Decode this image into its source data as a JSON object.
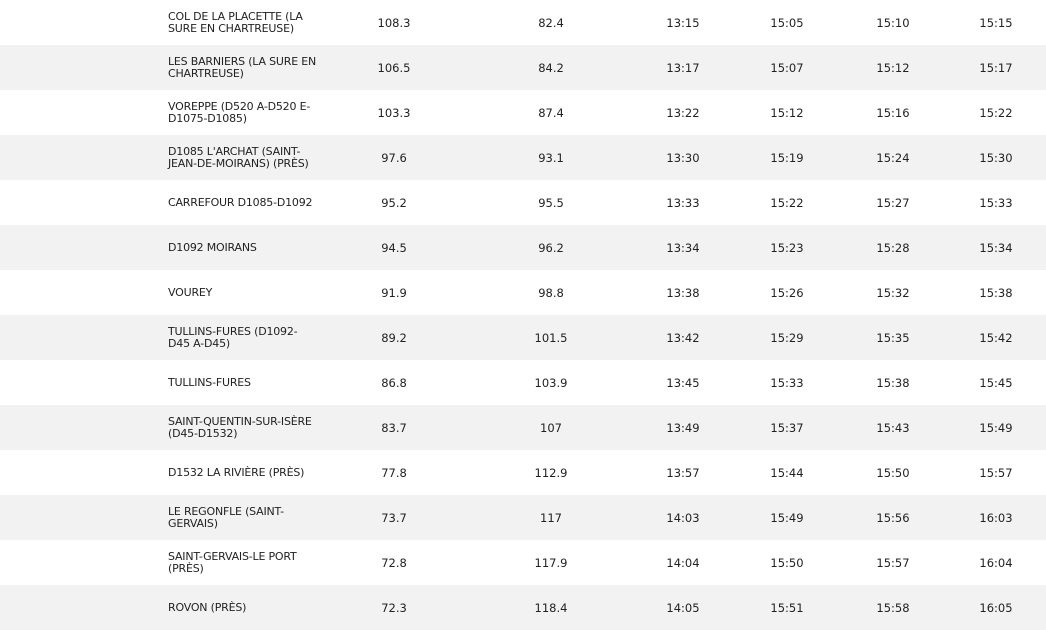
{
  "rows": [
    {
      "name": "COL DE LA PLACETTE (LA SURE EN CHARTREUSE)",
      "km_a": "108.3",
      "km_b": "82.4",
      "t1": "13:15",
      "t2": "15:05",
      "t3": "15:10",
      "t4": "15:15"
    },
    {
      "name": "LES BARNIERS (LA SURE EN CHARTREUSE)",
      "km_a": "106.5",
      "km_b": "84.2",
      "t1": "13:17",
      "t2": "15:07",
      "t3": "15:12",
      "t4": "15:17"
    },
    {
      "name": "VOREPPE (D520 A-D520 E-D1075-D1085)",
      "km_a": "103.3",
      "km_b": "87.4",
      "t1": "13:22",
      "t2": "15:12",
      "t3": "15:16",
      "t4": "15:22"
    },
    {
      "name": "D1085 L'ARCHAT (SAINT-JEAN-DE-MOIRANS) (PRÈS)",
      "km_a": "97.6",
      "km_b": "93.1",
      "t1": "13:30",
      "t2": "15:19",
      "t3": "15:24",
      "t4": "15:30"
    },
    {
      "name": "CARREFOUR D1085-D1092",
      "km_a": "95.2",
      "km_b": "95.5",
      "t1": "13:33",
      "t2": "15:22",
      "t3": "15:27",
      "t4": "15:33"
    },
    {
      "name": "D1092 MOIRANS",
      "km_a": "94.5",
      "km_b": "96.2",
      "t1": "13:34",
      "t2": "15:23",
      "t3": "15:28",
      "t4": "15:34"
    },
    {
      "name": "VOUREY",
      "km_a": "91.9",
      "km_b": "98.8",
      "t1": "13:38",
      "t2": "15:26",
      "t3": "15:32",
      "t4": "15:38"
    },
    {
      "name": "TULLINS-FURES (D1092-D45 A-D45)",
      "km_a": "89.2",
      "km_b": "101.5",
      "t1": "13:42",
      "t2": "15:29",
      "t3": "15:35",
      "t4": "15:42"
    },
    {
      "name": "TULLINS-FURES",
      "km_a": "86.8",
      "km_b": "103.9",
      "t1": "13:45",
      "t2": "15:33",
      "t3": "15:38",
      "t4": "15:45"
    },
    {
      "name": "SAINT-QUENTIN-SUR-ISÈRE (D45-D1532)",
      "km_a": "83.7",
      "km_b": "107",
      "t1": "13:49",
      "t2": "15:37",
      "t3": "15:43",
      "t4": "15:49"
    },
    {
      "name": "D1532 LA RIVIÈRE (PRÈS)",
      "km_a": "77.8",
      "km_b": "112.9",
      "t1": "13:57",
      "t2": "15:44",
      "t3": "15:50",
      "t4": "15:57"
    },
    {
      "name": "LE REGONFLE (SAINT-GERVAIS)",
      "km_a": "73.7",
      "km_b": "117",
      "t1": "14:03",
      "t2": "15:49",
      "t3": "15:56",
      "t4": "16:03"
    },
    {
      "name": "SAINT-GERVAIS-LE PORT (PRÈS)",
      "km_a": "72.8",
      "km_b": "117.9",
      "t1": "14:04",
      "t2": "15:50",
      "t3": "15:57",
      "t4": "16:04"
    },
    {
      "name": "ROVON (PRÈS)",
      "km_a": "72.3",
      "km_b": "118.4",
      "t1": "14:05",
      "t2": "15:51",
      "t3": "15:58",
      "t4": "16:05"
    }
  ]
}
